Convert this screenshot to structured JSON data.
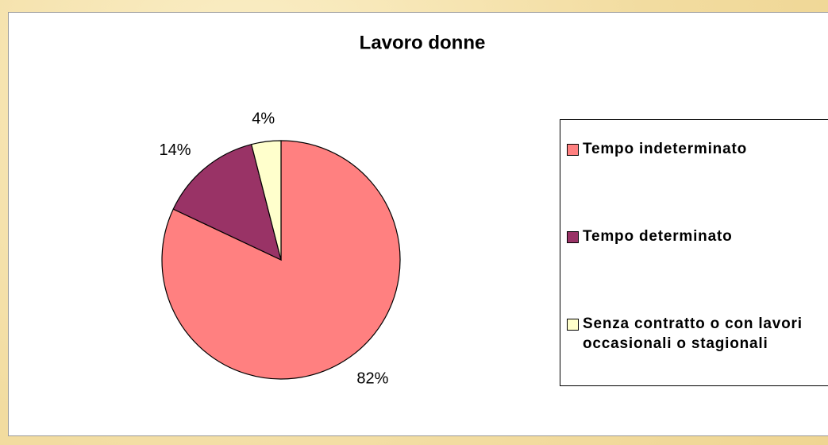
{
  "chart_data": {
    "type": "pie",
    "title": "Lavoro donne",
    "categories": [
      "Tempo indeterminato",
      "Tempo determinato",
      "Senza contratto o con lavori occasionali o stagionali"
    ],
    "values": [
      82,
      14,
      4
    ],
    "value_labels": [
      "82%",
      "14%",
      "4%"
    ],
    "colors": [
      "#ff8080",
      "#993366",
      "#ffffcc"
    ],
    "legend": "right"
  }
}
